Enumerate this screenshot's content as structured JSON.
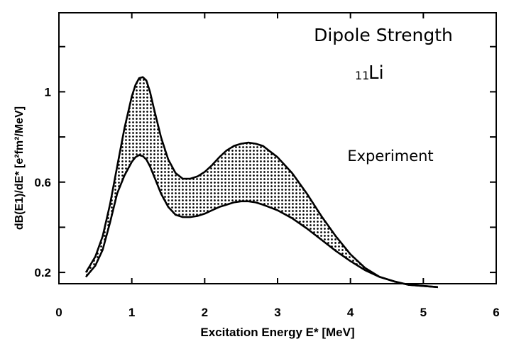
{
  "chart_data": {
    "type": "area",
    "title_line1": "Dipole Strength",
    "title_mass": "11",
    "title_element": "Li",
    "annotation": "Experiment",
    "xlabel": "Excitation Energy E* [MeV]",
    "ylabel": "dB(E1)/dE* [e²fm²/MeV]",
    "xlim": [
      0,
      6
    ],
    "ylim": [
      0.15,
      1.35
    ],
    "x_ticks": [
      0,
      1,
      2,
      3,
      4,
      5,
      6
    ],
    "x_tick_labels": [
      "0",
      "1",
      "2",
      "3",
      "4",
      "5",
      "6"
    ],
    "y_ticks": [
      0.2,
      0.4,
      0.6,
      0.8,
      1.0,
      1.2
    ],
    "y_tick_labels": [
      "0.2",
      "",
      "0.6",
      "",
      "1",
      ""
    ],
    "grid": false,
    "series": [
      {
        "role": "upper bound",
        "x": [
          0.37,
          0.5,
          0.6,
          0.7,
          0.8,
          0.9,
          1.0,
          1.05,
          1.1,
          1.15,
          1.2,
          1.25,
          1.3,
          1.4,
          1.5,
          1.6,
          1.7,
          1.8,
          1.9,
          2.0,
          2.1,
          2.2,
          2.3,
          2.4,
          2.5,
          2.6,
          2.7,
          2.8,
          3.0,
          3.2,
          3.4,
          3.6,
          3.8,
          4.0,
          4.2,
          4.4,
          4.6,
          4.8,
          5.0,
          5.2
        ],
        "values": [
          0.2,
          0.27,
          0.36,
          0.5,
          0.67,
          0.84,
          0.98,
          1.03,
          1.06,
          1.065,
          1.05,
          1.0,
          0.93,
          0.8,
          0.7,
          0.64,
          0.615,
          0.615,
          0.625,
          0.645,
          0.675,
          0.71,
          0.74,
          0.76,
          0.77,
          0.775,
          0.77,
          0.76,
          0.71,
          0.64,
          0.55,
          0.45,
          0.36,
          0.28,
          0.22,
          0.18,
          0.16,
          0.145,
          0.14,
          0.135
        ]
      },
      {
        "role": "lower bound",
        "x": [
          0.37,
          0.5,
          0.6,
          0.7,
          0.8,
          0.9,
          1.0,
          1.05,
          1.1,
          1.15,
          1.2,
          1.25,
          1.3,
          1.4,
          1.5,
          1.6,
          1.7,
          1.8,
          1.9,
          2.0,
          2.1,
          2.2,
          2.3,
          2.4,
          2.5,
          2.6,
          2.7,
          2.8,
          3.0,
          3.2,
          3.4,
          3.6,
          3.8,
          4.0,
          4.2,
          4.4,
          4.6,
          4.8,
          5.0,
          5.2
        ],
        "values": [
          0.18,
          0.23,
          0.3,
          0.42,
          0.55,
          0.63,
          0.69,
          0.71,
          0.72,
          0.715,
          0.7,
          0.67,
          0.63,
          0.55,
          0.49,
          0.455,
          0.445,
          0.445,
          0.45,
          0.46,
          0.475,
          0.49,
          0.5,
          0.51,
          0.515,
          0.515,
          0.51,
          0.5,
          0.475,
          0.44,
          0.395,
          0.345,
          0.295,
          0.25,
          0.21,
          0.18,
          0.16,
          0.145,
          0.14,
          0.135
        ]
      }
    ]
  }
}
